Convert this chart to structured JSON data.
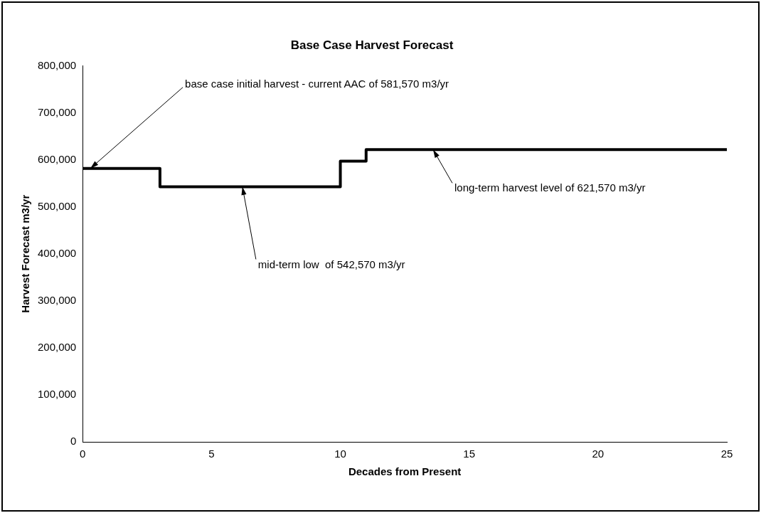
{
  "chart_data": {
    "type": "step",
    "title": "Base Case Harvest Forecast",
    "xlabel": "Decades from Present",
    "ylabel": "Harvest Forecast m3/yr",
    "x": [
      0,
      3,
      10,
      11,
      25
    ],
    "values": [
      581570,
      542570,
      597000,
      621570,
      621570
    ],
    "color": "#000000",
    "xlim": [
      0,
      25
    ],
    "xticks": [
      0,
      5,
      10,
      15,
      20,
      25
    ],
    "ylim": [
      0,
      800000
    ],
    "yticks": [
      {
        "value": 0,
        "label": "0"
      },
      {
        "value": 100000,
        "label": "100,000"
      },
      {
        "value": 200000,
        "label": "200,000"
      },
      {
        "value": 300000,
        "label": "300,000"
      },
      {
        "value": 400000,
        "label": "400,000"
      },
      {
        "value": 500000,
        "label": "500,000"
      },
      {
        "value": 600000,
        "label": "600,000"
      },
      {
        "value": 700000,
        "label": "700,000"
      },
      {
        "value": 800000,
        "label": "800,000"
      }
    ],
    "grid": false,
    "legend": false,
    "marker": "none",
    "line_style": "solid",
    "annotations": [
      {
        "text": "base case initial harvest - current AAC of 581,570 m3/yr",
        "x": 0.3,
        "y": 581570
      },
      {
        "text": "mid-term low  of 542,570 m3/yr",
        "x": 6.2,
        "y": 542570
      },
      {
        "text": "long-term harvest level of 621,570 m3/yr",
        "x": 13.6,
        "y": 621570
      }
    ]
  }
}
